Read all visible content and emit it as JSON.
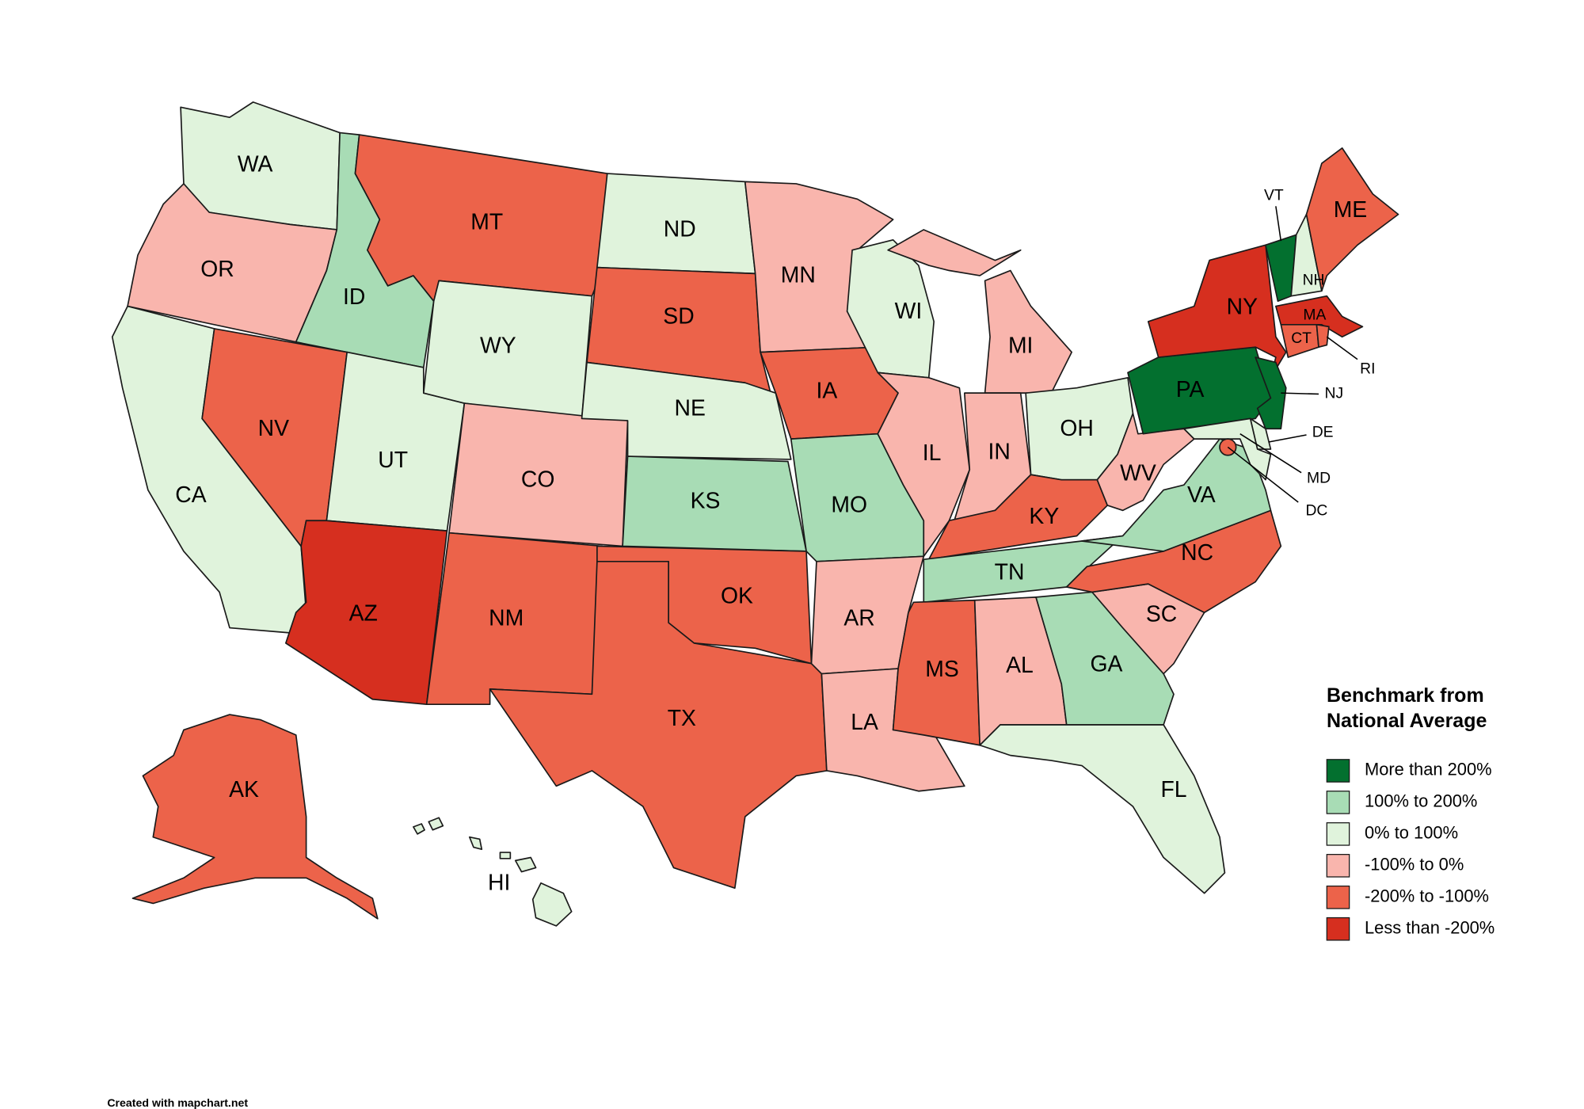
{
  "legend": {
    "title": "Benchmark from National Average",
    "items": [
      {
        "label": "More than 200%",
        "color": "#03702f"
      },
      {
        "label": "100% to 200%",
        "color": "#a8dcb5"
      },
      {
        "label": "0% to 100%",
        "color": "#e0f3dc"
      },
      {
        "label": "-100% to 0%",
        "color": "#f9b5ad"
      },
      {
        "label": "-200% to -100%",
        "color": "#ec634a"
      },
      {
        "label": "Less than -200%",
        "color": "#d62f1f"
      }
    ]
  },
  "states": [
    {
      "label": "WA",
      "color": "#e0f3dc"
    },
    {
      "label": "OR",
      "color": "#f9b5ad"
    },
    {
      "label": "CA",
      "color": "#e0f3dc"
    },
    {
      "label": "ID",
      "color": "#a8dcb5"
    },
    {
      "label": "NV",
      "color": "#ec634a"
    },
    {
      "label": "UT",
      "color": "#e0f3dc"
    },
    {
      "label": "AZ",
      "color": "#d62f1f"
    },
    {
      "label": "MT",
      "color": "#ec634a"
    },
    {
      "label": "WY",
      "color": "#e0f3dc"
    },
    {
      "label": "CO",
      "color": "#f9b5ad"
    },
    {
      "label": "NM",
      "color": "#ec634a"
    },
    {
      "label": "ND",
      "color": "#e0f3dc"
    },
    {
      "label": "SD",
      "color": "#ec634a"
    },
    {
      "label": "NE",
      "color": "#e0f3dc"
    },
    {
      "label": "KS",
      "color": "#a8dcb5"
    },
    {
      "label": "OK",
      "color": "#ec634a"
    },
    {
      "label": "TX",
      "color": "#ec634a"
    },
    {
      "label": "MN",
      "color": "#f9b5ad"
    },
    {
      "label": "IA",
      "color": "#ec634a"
    },
    {
      "label": "MO",
      "color": "#a8dcb5"
    },
    {
      "label": "AR",
      "color": "#f9b5ad"
    },
    {
      "label": "LA",
      "color": "#f9b5ad"
    },
    {
      "label": "WI",
      "color": "#e0f3dc"
    },
    {
      "label": "IL",
      "color": "#f9b5ad"
    },
    {
      "label": "MI",
      "color": "#f9b5ad"
    },
    {
      "label": "IN",
      "color": "#f9b5ad"
    },
    {
      "label": "OH",
      "color": "#e0f3dc"
    },
    {
      "label": "KY",
      "color": "#ec634a"
    },
    {
      "label": "TN",
      "color": "#a8dcb5"
    },
    {
      "label": "MS",
      "color": "#ec634a"
    },
    {
      "label": "AL",
      "color": "#f9b5ad"
    },
    {
      "label": "GA",
      "color": "#a8dcb5"
    },
    {
      "label": "FL",
      "color": "#e0f3dc"
    },
    {
      "label": "SC",
      "color": "#f9b5ad"
    },
    {
      "label": "NC",
      "color": "#ec634a"
    },
    {
      "label": "VA",
      "color": "#a8dcb5"
    },
    {
      "label": "WV",
      "color": "#f9b5ad"
    },
    {
      "label": "PA",
      "color": "#03702f"
    },
    {
      "label": "NY",
      "color": "#d62f1f"
    },
    {
      "label": "VT",
      "color": "#03702f"
    },
    {
      "label": "NH",
      "color": "#e0f3dc"
    },
    {
      "label": "ME",
      "color": "#ec634a"
    },
    {
      "label": "MA",
      "color": "#d62f1f"
    },
    {
      "label": "CT",
      "color": "#ec634a"
    },
    {
      "label": "RI",
      "color": "#ec634a"
    },
    {
      "label": "NJ",
      "color": "#03702f"
    },
    {
      "label": "DE",
      "color": "#e0f3dc"
    },
    {
      "label": "MD",
      "color": "#e0f3dc"
    },
    {
      "label": "DC",
      "color": "#ec634a"
    },
    {
      "label": "AK",
      "color": "#ec634a"
    },
    {
      "label": "HI",
      "color": "#e0f3dc"
    }
  ],
  "footer": "Created with mapchart.net"
}
